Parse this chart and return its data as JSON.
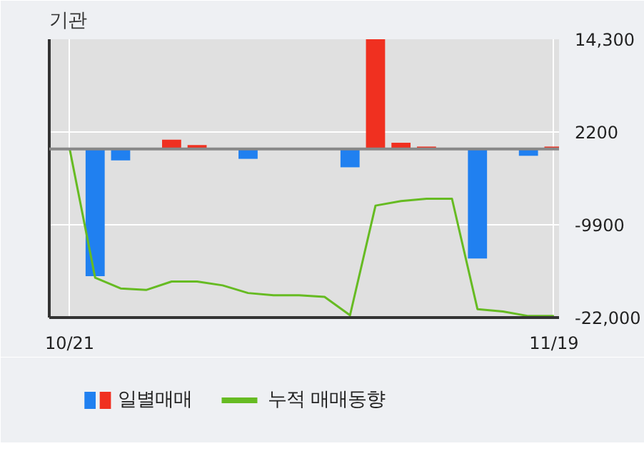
{
  "chart_data": {
    "type": "bar",
    "title": "기관",
    "categories": [
      "10/21",
      null,
      null,
      null,
      null,
      null,
      null,
      null,
      null,
      null,
      null,
      null,
      null,
      null,
      null,
      null,
      null,
      null,
      null,
      "11/19"
    ],
    "series": [
      {
        "name": "일별매매",
        "values": [
          0,
          -16600,
          -1500,
          0,
          1200,
          500,
          0,
          -1300,
          0,
          0,
          0,
          -2400,
          14300,
          800,
          300,
          0,
          -14300,
          0,
          -900,
          300
        ],
        "colors": [
          "#f03020",
          "#2080f0",
          "#2080f0",
          "#f03020",
          "#f03020",
          "#f03020",
          "#f03020",
          "#2080f0",
          "#f03020",
          "#f03020",
          "#f03020",
          "#2080f0",
          "#f03020",
          "#f03020",
          "#f03020",
          "#f03020",
          "#2080f0",
          "#f03020",
          "#2080f0",
          "#f03020"
        ]
      },
      {
        "name": "누적 매매동향",
        "type": "line",
        "color": "#66bb22",
        "values": [
          0,
          -16800,
          -18200,
          -18400,
          -17300,
          -17300,
          -17800,
          -18800,
          -19100,
          -19100,
          -19300,
          -21700,
          -7400,
          -6800,
          -6500,
          -6500,
          -20900,
          -21200,
          -21800,
          -21800
        ]
      }
    ],
    "ylim": [
      -22000,
      14300
    ],
    "yticks": [
      {
        "value": 14300,
        "label": "14,300"
      },
      {
        "value": 2200,
        "label": "2200"
      },
      {
        "value": -9900,
        "label": "-9900"
      },
      {
        "value": -22000,
        "label": "-22,000"
      }
    ],
    "ref_lines": [
      {
        "axis": "y",
        "value": 0,
        "label": null,
        "color": "#888888"
      }
    ],
    "grid": true,
    "legend": "bottom"
  }
}
